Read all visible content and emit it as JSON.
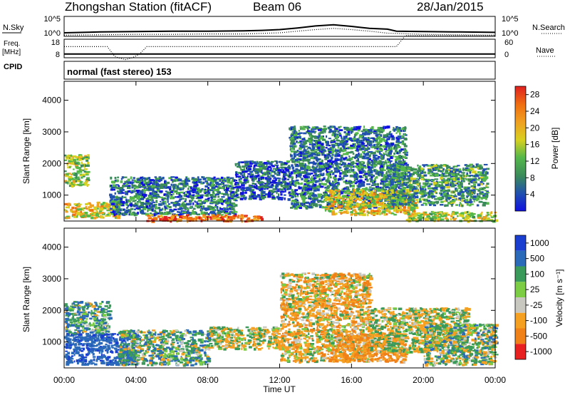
{
  "header": {
    "station": "Zhongshan Station (fitACF)",
    "beam": "Beam 06",
    "date": "28/Jan/2015"
  },
  "panel_labels": {
    "nsky": "N.Sky",
    "nsearch": "N.Search",
    "freq_line1": "Freq.",
    "freq_line2": "[MHz]",
    "nave": "Nave",
    "cpid": "CPID",
    "mode": "normal (fast stereo) 153"
  },
  "colors": {
    "power_scale": [
      "#1010e0",
      "#2050b0",
      "#3a8a5a",
      "#55b84a",
      "#d8d020",
      "#f0a020",
      "#f07010",
      "#e02020"
    ],
    "velocity_scale": [
      "#1a3ed0",
      "#2a6ab8",
      "#3a9a5a",
      "#7ccc44",
      "#c8c8c0",
      "#f5a020",
      "#f08018",
      "#e82020"
    ]
  },
  "chart_data": [
    {
      "type": "line",
      "title": "N.Sky / N.Search",
      "left_ticks": [
        "10^5",
        "10^0"
      ],
      "right_ticks": [
        "10^5",
        "10^0"
      ],
      "ylim_log10": [
        0,
        5
      ],
      "series": [
        {
          "name": "N.Sky",
          "style": "solid",
          "x": [
            0,
            2,
            4,
            6,
            8,
            10,
            11,
            12,
            13,
            14,
            15,
            16,
            17,
            18,
            18.5,
            20,
            22,
            24
          ],
          "y": [
            0.9,
            1.1,
            1.2,
            1.3,
            1.3,
            1.4,
            1.5,
            1.7,
            2.1,
            2.6,
            2.9,
            2.5,
            2.0,
            1.8,
            1.3,
            1.2,
            1.1,
            1.0
          ]
        },
        {
          "name": "N.Search",
          "style": "dotted",
          "x": [
            0,
            2,
            4,
            6,
            8,
            10,
            12,
            13,
            14,
            15,
            16,
            17,
            18,
            20,
            22,
            24
          ],
          "y": [
            0.3,
            0.4,
            0.5,
            0.5,
            0.6,
            0.6,
            0.9,
            1.3,
            1.7,
            2.0,
            1.7,
            1.3,
            0.8,
            0.5,
            0.4,
            0.3
          ]
        }
      ]
    },
    {
      "type": "line",
      "title": "Freq / Nave",
      "left_ticks": [
        "18",
        "8"
      ],
      "right_ticks": [
        "60",
        "0"
      ],
      "left_ylim": [
        8,
        18
      ],
      "right_ylim": [
        0,
        60
      ],
      "series": [
        {
          "name": "Freq. [MHz]",
          "style": "solid",
          "x": [
            0,
            24
          ],
          "y": [
            10,
            10
          ]
        },
        {
          "name": "Nave",
          "style": "dotted",
          "x": [
            0,
            2.4,
            2.8,
            3.0,
            3.4,
            3.8,
            4.2,
            4.6,
            12,
            18.5,
            19,
            24
          ],
          "y": [
            14,
            14,
            9,
            8,
            7,
            8,
            10,
            14,
            14,
            14,
            20,
            20
          ]
        }
      ]
    },
    {
      "type": "heatmap",
      "title": "Power",
      "ylabel": "Slant Range [km]",
      "xlabel": "Time UT",
      "x_ticks": [
        "00:00",
        "04:00",
        "08:00",
        "12:00",
        "16:00",
        "20:00",
        "00:00"
      ],
      "y_ticks": [
        1000,
        2000,
        3000,
        4000
      ],
      "xlim_hours": [
        0,
        24
      ],
      "ylim_km": [
        180,
        4600
      ],
      "colorbar": {
        "label": "Power [dB]",
        "ticks": [
          4,
          8,
          12,
          16,
          20,
          24,
          28
        ],
        "range": [
          0,
          30
        ]
      },
      "echo_regions": [
        {
          "t": [
            0,
            3.0
          ],
          "r": [
            300,
            800
          ],
          "db": 18
        },
        {
          "t": [
            0,
            1.3
          ],
          "r": [
            1300,
            2300
          ],
          "db": 14
        },
        {
          "t": [
            2.5,
            9.5
          ],
          "r": [
            400,
            1600
          ],
          "db": 8
        },
        {
          "t": [
            4.5,
            11
          ],
          "r": [
            200,
            400
          ],
          "db": 24
        },
        {
          "t": [
            9.5,
            12.5
          ],
          "r": [
            900,
            2100
          ],
          "db": 6
        },
        {
          "t": [
            12.5,
            19
          ],
          "r": [
            600,
            3200
          ],
          "db": 8
        },
        {
          "t": [
            14.5,
            19.5
          ],
          "r": [
            400,
            1200
          ],
          "db": 18
        },
        {
          "t": [
            18,
            23.5
          ],
          "r": [
            700,
            2000
          ],
          "db": 10
        },
        {
          "t": [
            19,
            24
          ],
          "r": [
            200,
            500
          ],
          "db": 16
        }
      ]
    },
    {
      "type": "heatmap",
      "title": "Velocity",
      "ylabel": "Slant Range [km]",
      "xlabel": "Time UT",
      "x_ticks": [
        "00:00",
        "04:00",
        "08:00",
        "12:00",
        "16:00",
        "20:00",
        "00:00"
      ],
      "y_ticks": [
        1000,
        2000,
        3000,
        4000
      ],
      "xlim_hours": [
        0,
        24
      ],
      "ylim_km": [
        180,
        4600
      ],
      "colorbar": {
        "label": "Velocity [m s⁻¹]",
        "ticks": [
          1000,
          500,
          100,
          25,
          -25,
          -100,
          -500,
          -1000
        ]
      },
      "echo_regions": [
        {
          "t": [
            0,
            4
          ],
          "r": [
            300,
            1300
          ],
          "v": 600
        },
        {
          "t": [
            0,
            2.5
          ],
          "r": [
            1300,
            2300
          ],
          "v": 200
        },
        {
          "t": [
            3,
            8
          ],
          "r": [
            300,
            1400
          ],
          "v": 150
        },
        {
          "t": [
            8,
            12
          ],
          "r": [
            800,
            1500
          ],
          "v": 0
        },
        {
          "t": [
            12,
            17
          ],
          "r": [
            400,
            3200
          ],
          "v": -150
        },
        {
          "t": [
            15,
            19
          ],
          "r": [
            400,
            1300
          ],
          "v": -300
        },
        {
          "t": [
            17,
            22.5
          ],
          "r": [
            700,
            2100
          ],
          "v": 0
        },
        {
          "t": [
            20,
            24
          ],
          "r": [
            300,
            1600
          ],
          "v": 100
        }
      ]
    }
  ]
}
